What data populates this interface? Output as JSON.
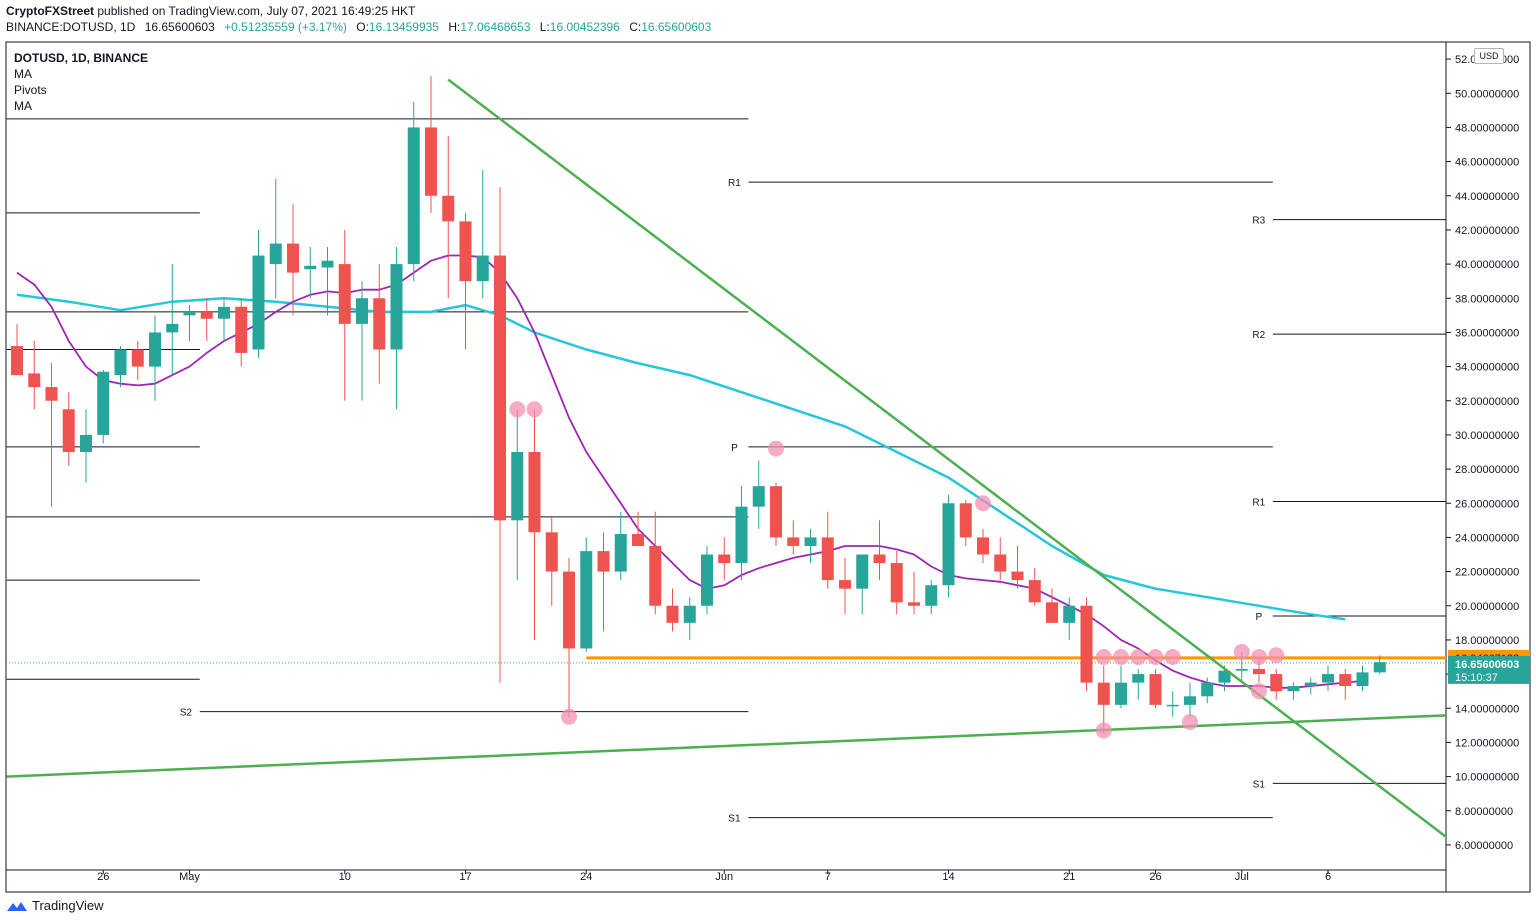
{
  "header": {
    "publisher": "CryptoFXStreet",
    "published_text": "published on TradingView.com, July 07, 2021 16:49:25 HKT",
    "symbol_line": "BINANCE:DOTUSD, 1D",
    "last": "16.65600603",
    "change": "+0.51235559 (+3.17%)",
    "o_label": "O:",
    "o": "16.13459935",
    "h_label": "H:",
    "h": "17.06468653",
    "l_label": "L:",
    "l": "16.00452396",
    "c_label": "C:",
    "c": "16.65600603"
  },
  "legend": {
    "title": "DOTUSD, 1D, BINANCE",
    "items": [
      "MA",
      "Pivots",
      "MA"
    ]
  },
  "currency": "USD",
  "footer": {
    "brand": "TradingView"
  },
  "colors": {
    "up": "#26a69a",
    "down": "#ef5350",
    "ma_fast": "#9c27b0",
    "ma_slow": "#26c6da",
    "trend": "#4caf50",
    "resistance": "#ff9800",
    "marker": "#f48fb1"
  },
  "chart_data": {
    "type": "candlestick",
    "ylim": [
      5,
      53
    ],
    "y_ticks": [
      6,
      8,
      10,
      12,
      14,
      16,
      18,
      20,
      22,
      24,
      26,
      28,
      30,
      32,
      34,
      36,
      38,
      40,
      42,
      44,
      46,
      48,
      50,
      52
    ],
    "y_tick_labels": [
      "6.00000000",
      "8.00000000",
      "10.00000000",
      "12.00000000",
      "14.00000000",
      "16.00000000",
      "18.00000000",
      "20.00000000",
      "22.00000000",
      "24.00000000",
      "26.00000000",
      "28.00000000",
      "30.00000000",
      "32.00000000",
      "34.00000000",
      "36.00000000",
      "38.00000000",
      "40.00000000",
      "42.00000000",
      "44.00000000",
      "46.00000000",
      "48.00000000",
      "50.00000000",
      "52.00000000"
    ],
    "x_labels": [
      {
        "day": 5,
        "label": "26"
      },
      {
        "day": 10,
        "label": "May"
      },
      {
        "day": 19,
        "label": "10"
      },
      {
        "day": 26,
        "label": "17"
      },
      {
        "day": 33,
        "label": "24"
      },
      {
        "day": 41,
        "label": "Jun"
      },
      {
        "day": 47,
        "label": "7"
      },
      {
        "day": 54,
        "label": "14"
      },
      {
        "day": 61,
        "label": "21"
      },
      {
        "day": 66,
        "label": "26"
      },
      {
        "day": 71,
        "label": "Jul"
      },
      {
        "day": 76,
        "label": "6"
      }
    ],
    "candles": [
      {
        "o": 35.2,
        "h": 36.5,
        "l": 33.5,
        "c": 33.5
      },
      {
        "o": 33.6,
        "h": 35.5,
        "l": 31.5,
        "c": 32.8
      },
      {
        "o": 32.8,
        "h": 34.2,
        "l": 25.8,
        "c": 32.0
      },
      {
        "o": 31.5,
        "h": 32.5,
        "l": 28.2,
        "c": 29.0
      },
      {
        "o": 29.0,
        "h": 31.5,
        "l": 27.2,
        "c": 30.0
      },
      {
        "o": 30.0,
        "h": 33.8,
        "l": 29.5,
        "c": 33.7
      },
      {
        "o": 33.5,
        "h": 35.2,
        "l": 32.8,
        "c": 35.0
      },
      {
        "o": 35.0,
        "h": 35.5,
        "l": 33.2,
        "c": 34.0
      },
      {
        "o": 34.0,
        "h": 37.0,
        "l": 32.0,
        "c": 36.0
      },
      {
        "o": 36.0,
        "h": 40.0,
        "l": 33.5,
        "c": 36.5
      },
      {
        "o": 37.0,
        "h": 37.6,
        "l": 35.5,
        "c": 37.2
      },
      {
        "o": 37.2,
        "h": 38.0,
        "l": 35.5,
        "c": 36.8
      },
      {
        "o": 36.8,
        "h": 38.0,
        "l": 35.5,
        "c": 37.5
      },
      {
        "o": 37.5,
        "h": 38.0,
        "l": 34.0,
        "c": 34.8
      },
      {
        "o": 35.0,
        "h": 42.0,
        "l": 34.5,
        "c": 40.5
      },
      {
        "o": 40.0,
        "h": 45.0,
        "l": 38.0,
        "c": 41.2
      },
      {
        "o": 41.2,
        "h": 43.5,
        "l": 37.0,
        "c": 39.5
      },
      {
        "o": 39.7,
        "h": 41.0,
        "l": 38.0,
        "c": 39.9
      },
      {
        "o": 39.8,
        "h": 41.0,
        "l": 37.0,
        "c": 40.2
      },
      {
        "o": 40.0,
        "h": 42.0,
        "l": 32.0,
        "c": 36.5
      },
      {
        "o": 36.5,
        "h": 39.0,
        "l": 32.0,
        "c": 38.0
      },
      {
        "o": 38.0,
        "h": 40.0,
        "l": 33.0,
        "c": 35.0
      },
      {
        "o": 35.0,
        "h": 41.0,
        "l": 31.5,
        "c": 40.0
      },
      {
        "o": 40.0,
        "h": 49.5,
        "l": 39.0,
        "c": 48.0
      },
      {
        "o": 48.0,
        "h": 51.0,
        "l": 43.0,
        "c": 44.0
      },
      {
        "o": 44.0,
        "h": 47.5,
        "l": 38.0,
        "c": 42.5
      },
      {
        "o": 42.5,
        "h": 43.0,
        "l": 35.0,
        "c": 39.0
      },
      {
        "o": 39.0,
        "h": 45.5,
        "l": 38.0,
        "c": 40.5
      },
      {
        "o": 40.5,
        "h": 44.5,
        "l": 15.5,
        "c": 25.0
      },
      {
        "o": 25.0,
        "h": 31.5,
        "l": 21.5,
        "c": 29.0
      },
      {
        "o": 29.0,
        "h": 31.5,
        "l": 18.0,
        "c": 24.3
      },
      {
        "o": 24.3,
        "h": 25.2,
        "l": 20.0,
        "c": 22.0
      },
      {
        "o": 22.0,
        "h": 22.8,
        "l": 13.5,
        "c": 17.5
      },
      {
        "o": 17.5,
        "h": 24.0,
        "l": 17.3,
        "c": 23.2
      },
      {
        "o": 23.2,
        "h": 24.3,
        "l": 18.5,
        "c": 22.0
      },
      {
        "o": 22.0,
        "h": 25.5,
        "l": 21.5,
        "c": 24.2
      },
      {
        "o": 24.2,
        "h": 25.5,
        "l": 23.5,
        "c": 23.5
      },
      {
        "o": 23.5,
        "h": 25.5,
        "l": 19.5,
        "c": 20.0
      },
      {
        "o": 20.0,
        "h": 21.0,
        "l": 18.5,
        "c": 19.0
      },
      {
        "o": 19.0,
        "h": 20.5,
        "l": 18.0,
        "c": 20.0
      },
      {
        "o": 20.0,
        "h": 23.5,
        "l": 19.5,
        "c": 23.0
      },
      {
        "o": 23.0,
        "h": 24.0,
        "l": 21.5,
        "c": 22.5
      },
      {
        "o": 22.5,
        "h": 27.0,
        "l": 21.5,
        "c": 25.8
      },
      {
        "o": 25.8,
        "h": 28.5,
        "l": 24.5,
        "c": 27.0
      },
      {
        "o": 27.0,
        "h": 27.2,
        "l": 23.5,
        "c": 24.0
      },
      {
        "o": 24.0,
        "h": 25.0,
        "l": 23.0,
        "c": 23.5
      },
      {
        "o": 23.5,
        "h": 24.5,
        "l": 22.5,
        "c": 24.0
      },
      {
        "o": 24.0,
        "h": 25.5,
        "l": 21.0,
        "c": 21.5
      },
      {
        "o": 21.5,
        "h": 22.8,
        "l": 19.5,
        "c": 21.0
      },
      {
        "o": 21.0,
        "h": 23.0,
        "l": 19.5,
        "c": 23.0
      },
      {
        "o": 23.0,
        "h": 25.0,
        "l": 21.5,
        "c": 22.5
      },
      {
        "o": 22.5,
        "h": 23.2,
        "l": 19.5,
        "c": 20.2
      },
      {
        "o": 20.2,
        "h": 22.0,
        "l": 19.5,
        "c": 20.0
      },
      {
        "o": 20.0,
        "h": 21.5,
        "l": 19.5,
        "c": 21.2
      },
      {
        "o": 21.2,
        "h": 26.5,
        "l": 20.5,
        "c": 26.0
      },
      {
        "o": 26.0,
        "h": 26.2,
        "l": 23.5,
        "c": 24.0
      },
      {
        "o": 24.0,
        "h": 24.5,
        "l": 22.5,
        "c": 23.0
      },
      {
        "o": 23.0,
        "h": 24.0,
        "l": 21.5,
        "c": 22.0
      },
      {
        "o": 22.0,
        "h": 23.5,
        "l": 21.0,
        "c": 21.5
      },
      {
        "o": 21.5,
        "h": 22.2,
        "l": 20.0,
        "c": 20.2
      },
      {
        "o": 20.2,
        "h": 21.0,
        "l": 19.0,
        "c": 19.0
      },
      {
        "o": 19.0,
        "h": 20.5,
        "l": 18.0,
        "c": 20.0
      },
      {
        "o": 20.0,
        "h": 20.5,
        "l": 15.0,
        "c": 15.5
      },
      {
        "o": 15.5,
        "h": 16.5,
        "l": 12.5,
        "c": 14.2
      },
      {
        "o": 14.2,
        "h": 16.5,
        "l": 14.0,
        "c": 15.5
      },
      {
        "o": 15.5,
        "h": 16.3,
        "l": 14.5,
        "c": 16.0
      },
      {
        "o": 16.0,
        "h": 16.3,
        "l": 14.0,
        "c": 14.2
      },
      {
        "o": 14.2,
        "h": 15.0,
        "l": 13.5,
        "c": 14.2
      },
      {
        "o": 14.2,
        "h": 15.5,
        "l": 13.5,
        "c": 14.7
      },
      {
        "o": 14.7,
        "h": 15.8,
        "l": 14.3,
        "c": 15.5
      },
      {
        "o": 15.5,
        "h": 16.5,
        "l": 15.0,
        "c": 16.2
      },
      {
        "o": 16.2,
        "h": 17.3,
        "l": 15.5,
        "c": 16.3
      },
      {
        "o": 16.3,
        "h": 17.0,
        "l": 15.5,
        "c": 16.0
      },
      {
        "o": 16.0,
        "h": 16.3,
        "l": 14.5,
        "c": 15.0
      },
      {
        "o": 15.0,
        "h": 15.5,
        "l": 14.5,
        "c": 15.3
      },
      {
        "o": 15.3,
        "h": 15.8,
        "l": 14.8,
        "c": 15.5
      },
      {
        "o": 15.5,
        "h": 16.5,
        "l": 15.0,
        "c": 16.0
      },
      {
        "o": 16.0,
        "h": 16.3,
        "l": 14.5,
        "c": 15.3
      },
      {
        "o": 15.3,
        "h": 16.5,
        "l": 15.0,
        "c": 16.1
      },
      {
        "o": 16.1,
        "h": 17.1,
        "l": 16.0,
        "c": 16.7
      }
    ],
    "ma_fast": [
      {
        "d": 0,
        "v": 39.5
      },
      {
        "d": 1,
        "v": 38.8
      },
      {
        "d": 2,
        "v": 37.5
      },
      {
        "d": 3,
        "v": 35.5
      },
      {
        "d": 4,
        "v": 34.0
      },
      {
        "d": 5,
        "v": 33.2
      },
      {
        "d": 6,
        "v": 33.0
      },
      {
        "d": 7,
        "v": 32.9
      },
      {
        "d": 8,
        "v": 33.0
      },
      {
        "d": 9,
        "v": 33.5
      },
      {
        "d": 10,
        "v": 34.0
      },
      {
        "d": 11,
        "v": 34.8
      },
      {
        "d": 12,
        "v": 35.5
      },
      {
        "d": 13,
        "v": 36.0
      },
      {
        "d": 14,
        "v": 36.5
      },
      {
        "d": 15,
        "v": 37.2
      },
      {
        "d": 16,
        "v": 37.8
      },
      {
        "d": 17,
        "v": 38.2
      },
      {
        "d": 18,
        "v": 38.4
      },
      {
        "d": 19,
        "v": 38.3
      },
      {
        "d": 20,
        "v": 38.5
      },
      {
        "d": 21,
        "v": 38.5
      },
      {
        "d": 22,
        "v": 38.8
      },
      {
        "d": 23,
        "v": 39.5
      },
      {
        "d": 24,
        "v": 40.2
      },
      {
        "d": 25,
        "v": 40.5
      },
      {
        "d": 26,
        "v": 40.5
      },
      {
        "d": 27,
        "v": 40.4
      },
      {
        "d": 28,
        "v": 39.5
      },
      {
        "d": 29,
        "v": 38.0
      },
      {
        "d": 30,
        "v": 36.0
      },
      {
        "d": 31,
        "v": 33.5
      },
      {
        "d": 32,
        "v": 31.0
      },
      {
        "d": 33,
        "v": 29.0
      },
      {
        "d": 34,
        "v": 27.5
      },
      {
        "d": 35,
        "v": 26.0
      },
      {
        "d": 36,
        "v": 24.5
      },
      {
        "d": 37,
        "v": 23.5
      },
      {
        "d": 38,
        "v": 22.5
      },
      {
        "d": 39,
        "v": 21.5
      },
      {
        "d": 40,
        "v": 21.0
      },
      {
        "d": 41,
        "v": 21.2
      },
      {
        "d": 42,
        "v": 21.8
      },
      {
        "d": 43,
        "v": 22.2
      },
      {
        "d": 44,
        "v": 22.5
      },
      {
        "d": 45,
        "v": 22.8
      },
      {
        "d": 46,
        "v": 23.0
      },
      {
        "d": 47,
        "v": 23.2
      },
      {
        "d": 48,
        "v": 23.5
      },
      {
        "d": 49,
        "v": 23.5
      },
      {
        "d": 50,
        "v": 23.5
      },
      {
        "d": 51,
        "v": 23.3
      },
      {
        "d": 52,
        "v": 23.0
      },
      {
        "d": 53,
        "v": 22.3
      },
      {
        "d": 54,
        "v": 21.8
      },
      {
        "d": 55,
        "v": 21.6
      },
      {
        "d": 56,
        "v": 21.5
      },
      {
        "d": 57,
        "v": 21.4
      },
      {
        "d": 58,
        "v": 21.2
      },
      {
        "d": 59,
        "v": 21.0
      },
      {
        "d": 60,
        "v": 20.5
      },
      {
        "d": 61,
        "v": 20.0
      },
      {
        "d": 62,
        "v": 19.5
      },
      {
        "d": 63,
        "v": 18.8
      },
      {
        "d": 64,
        "v": 18.0
      },
      {
        "d": 65,
        "v": 17.5
      },
      {
        "d": 66,
        "v": 16.8
      },
      {
        "d": 67,
        "v": 16.2
      },
      {
        "d": 68,
        "v": 15.8
      },
      {
        "d": 69,
        "v": 15.5
      },
      {
        "d": 70,
        "v": 15.3
      },
      {
        "d": 71,
        "v": 15.3
      },
      {
        "d": 72,
        "v": 15.3
      },
      {
        "d": 73,
        "v": 15.2
      },
      {
        "d": 74,
        "v": 15.2
      },
      {
        "d": 75,
        "v": 15.3
      },
      {
        "d": 76,
        "v": 15.4
      },
      {
        "d": 77,
        "v": 15.5
      },
      {
        "d": 78,
        "v": 15.6
      }
    ],
    "ma_slow": [
      {
        "d": 0,
        "v": 38.2
      },
      {
        "d": 3,
        "v": 37.8
      },
      {
        "d": 6,
        "v": 37.3
      },
      {
        "d": 9,
        "v": 37.8
      },
      {
        "d": 12,
        "v": 38.0
      },
      {
        "d": 15,
        "v": 37.8
      },
      {
        "d": 18,
        "v": 37.5
      },
      {
        "d": 21,
        "v": 37.2
      },
      {
        "d": 24,
        "v": 37.2
      },
      {
        "d": 26,
        "v": 37.6
      },
      {
        "d": 28,
        "v": 37.0
      },
      {
        "d": 30,
        "v": 36.0
      },
      {
        "d": 33,
        "v": 35.0
      },
      {
        "d": 36,
        "v": 34.2
      },
      {
        "d": 39,
        "v": 33.5
      },
      {
        "d": 42,
        "v": 32.5
      },
      {
        "d": 45,
        "v": 31.5
      },
      {
        "d": 48,
        "v": 30.5
      },
      {
        "d": 51,
        "v": 29.0
      },
      {
        "d": 54,
        "v": 27.5
      },
      {
        "d": 57,
        "v": 25.5
      },
      {
        "d": 60,
        "v": 23.5
      },
      {
        "d": 63,
        "v": 21.8
      },
      {
        "d": 66,
        "v": 21.0
      },
      {
        "d": 69,
        "v": 20.5
      },
      {
        "d": 72,
        "v": 20.0
      },
      {
        "d": 75,
        "v": 19.5
      },
      {
        "d": 77,
        "v": 19.2
      }
    ],
    "pivot_segments": [
      {
        "label": "R1",
        "y": 48.5,
        "d0": -0.6,
        "d1": 42.4,
        "label_left": true
      },
      {
        "label": "",
        "y": 43.0,
        "d0": -0.6,
        "d1": 10.6,
        "label_left": false
      },
      {
        "label": "P",
        "y": 37.2,
        "d0": -0.6,
        "d1": 42.4,
        "label_left": true
      },
      {
        "label": "",
        "y": 35.0,
        "d0": -0.6,
        "d1": 10.6,
        "label_left": false
      },
      {
        "label": "",
        "y": 29.3,
        "d0": -0.6,
        "d1": 10.6,
        "label_left": false
      },
      {
        "label": "S1",
        "y": 25.2,
        "d0": -0.6,
        "d1": 42.4,
        "label_left": true
      },
      {
        "label": "",
        "y": 21.5,
        "d0": -0.6,
        "d1": 10.6,
        "label_left": false
      },
      {
        "label": "",
        "y": 15.7,
        "d0": -0.6,
        "d1": 10.6,
        "label_left": false
      },
      {
        "label": "S2",
        "y": 13.8,
        "d0": 10.6,
        "d1": 42.4,
        "label_left": true
      },
      {
        "label": "R1",
        "y": 44.8,
        "d0": 42.4,
        "d1": 72.8,
        "label_left": true
      },
      {
        "label": "P",
        "y": 29.3,
        "d0": 42.4,
        "d1": 72.8,
        "label_left": true
      },
      {
        "label": "S1",
        "y": 7.6,
        "d0": 42.4,
        "d1": 72.8,
        "label_left": true
      },
      {
        "label": "R3",
        "y": 42.6,
        "d0": 72.8,
        "d1": 83.2,
        "label_left": true
      },
      {
        "label": "R2",
        "y": 35.9,
        "d0": 72.8,
        "d1": 83.2,
        "label_left": true
      },
      {
        "label": "R1",
        "y": 26.1,
        "d0": 72.8,
        "d1": 83.2,
        "label_left": true
      },
      {
        "label": "P",
        "y": 19.4,
        "d0": 72.8,
        "d1": 83.2,
        "label_left": true
      },
      {
        "label": "S1",
        "y": 9.6,
        "d0": 72.8,
        "d1": 83.2,
        "label_left": true
      }
    ],
    "trendlines": [
      {
        "name": "",
        "d0": 25.0,
        "y0": 50.8,
        "d1": 83.2,
        "y1": 6.2
      },
      {
        "name": "",
        "d0": -0.6,
        "y0": 10.0,
        "d1": 83.2,
        "y1": 13.6
      }
    ],
    "resistance": {
      "d0": 33.0,
      "d1": 83.2,
      "y": 16.94607122,
      "label": "16.94607122"
    },
    "current_price": {
      "y": 16.65600603,
      "label": "16.65600603",
      "countdown": "15:10:37"
    },
    "markers": [
      {
        "d": 29,
        "y": 31.5
      },
      {
        "d": 30,
        "y": 31.5
      },
      {
        "d": 32,
        "y": 13.5
      },
      {
        "d": 44,
        "y": 29.2
      },
      {
        "d": 56,
        "y": 26.0
      },
      {
        "d": 63,
        "y": 17.0
      },
      {
        "d": 63,
        "y": 12.7
      },
      {
        "d": 64,
        "y": 17.0
      },
      {
        "d": 65,
        "y": 17.0
      },
      {
        "d": 66,
        "y": 17.0
      },
      {
        "d": 67,
        "y": 17.0
      },
      {
        "d": 68,
        "y": 13.2
      },
      {
        "d": 71,
        "y": 17.3
      },
      {
        "d": 72,
        "y": 17.0
      },
      {
        "d": 72,
        "y": 15.0
      },
      {
        "d": 73,
        "y": 17.1
      }
    ]
  }
}
